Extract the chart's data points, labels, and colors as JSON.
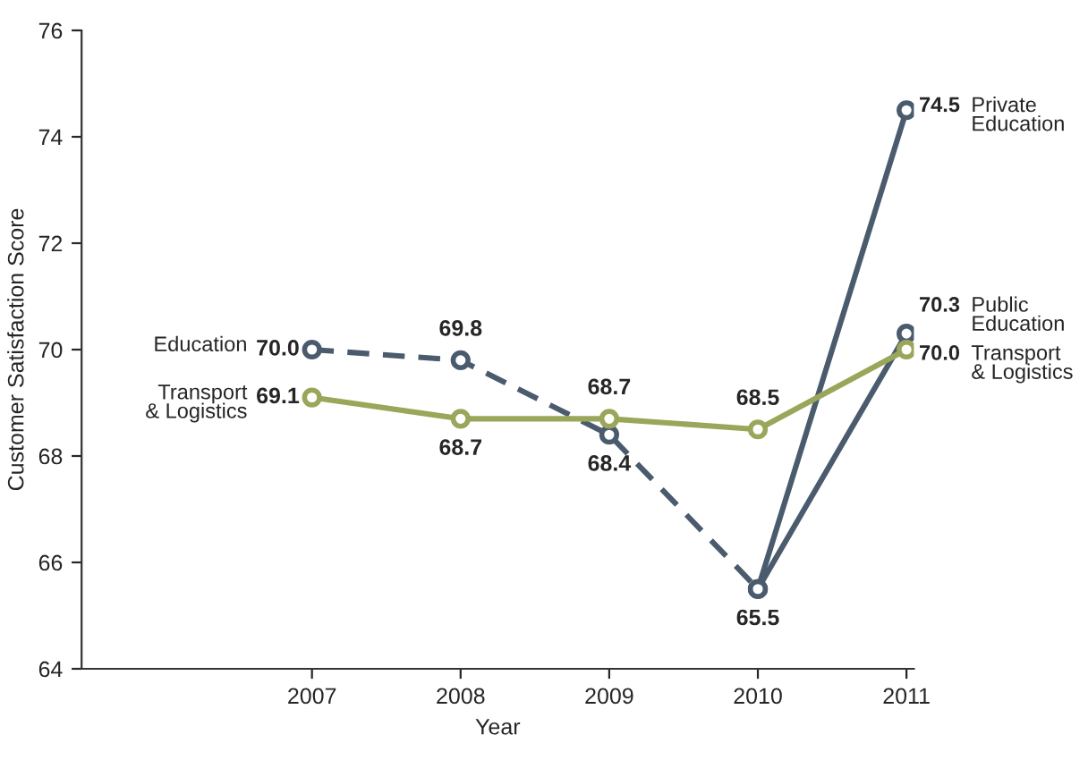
{
  "chart_data": {
    "type": "line",
    "xlabel": "Year",
    "ylabel": "Customer Satisfaction Score",
    "categories": [
      "2007",
      "2008",
      "2009",
      "2010",
      "2011"
    ],
    "ylim": [
      64,
      76
    ],
    "yticks": [
      64,
      66,
      68,
      70,
      72,
      74,
      76
    ],
    "grid": false,
    "legend": false,
    "marker": "circle",
    "series": [
      {
        "name": "Education",
        "color": "#4b5b6e",
        "line_style": "dashed",
        "values": [
          70.0,
          69.8,
          68.4,
          65.5,
          null
        ],
        "value_labels": [
          "70.0",
          "69.8",
          "68.4",
          "65.5",
          null
        ]
      },
      {
        "name": "Private Education",
        "color": "#4b5b6e",
        "line_style": "solid",
        "values": [
          null,
          null,
          null,
          65.5,
          74.5
        ],
        "value_labels": [
          null,
          null,
          null,
          null,
          "74.5"
        ]
      },
      {
        "name": "Public Education",
        "color": "#4b5b6e",
        "line_style": "solid",
        "values": [
          null,
          null,
          null,
          65.5,
          70.3
        ],
        "value_labels": [
          null,
          null,
          null,
          null,
          "70.3"
        ]
      },
      {
        "name": "Transport & Logistics",
        "color": "#9aa65a",
        "line_style": "solid",
        "values": [
          69.1,
          68.7,
          68.7,
          68.5,
          70.0
        ],
        "value_labels": [
          "69.1",
          "68.7",
          "68.7",
          "68.5",
          "70.0"
        ]
      }
    ]
  }
}
